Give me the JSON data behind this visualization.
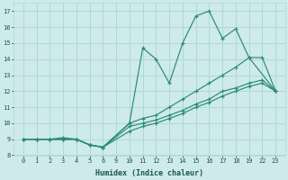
{
  "xlabel": "Humidex (Indice chaleur)",
  "background_color": "#ceeaea",
  "grid_color": "#b0d8d8",
  "line_color": "#2a8a7a",
  "ylim": [
    8,
    17.5
  ],
  "yticks": [
    8,
    9,
    10,
    11,
    12,
    13,
    14,
    15,
    16,
    17
  ],
  "x_positions": [
    0,
    1,
    2,
    3,
    4,
    5,
    6,
    7,
    8,
    9,
    10,
    11,
    12,
    13,
    14,
    15,
    16,
    17,
    18,
    19
  ],
  "x_labels": [
    "0",
    "1",
    "2",
    "3",
    "4",
    "5",
    "6",
    "9",
    "10",
    "11",
    "12",
    "13",
    "14",
    "15",
    "16",
    "17",
    "18",
    "19",
    "22",
    "23"
  ],
  "lines": [
    {
      "x": [
        0,
        1,
        2,
        3,
        4,
        5,
        6,
        8,
        9,
        10,
        11,
        12,
        13,
        14,
        15,
        16,
        17,
        19
      ],
      "y": [
        9,
        9,
        9,
        9,
        9,
        8.65,
        8.5,
        10,
        14.7,
        14,
        12.5,
        15,
        16.7,
        17,
        15.3,
        15.9,
        14.1,
        12
      ]
    },
    {
      "x": [
        0,
        1,
        2,
        3,
        4,
        5,
        6,
        8,
        9,
        10,
        11,
        12,
        13,
        14,
        15,
        16,
        17,
        18,
        19
      ],
      "y": [
        9,
        9,
        9,
        9,
        9,
        8.65,
        8.5,
        10,
        10.3,
        10.5,
        11,
        11.5,
        12,
        12.5,
        13,
        13.5,
        14.1,
        14.1,
        12
      ]
    },
    {
      "x": [
        0,
        1,
        2,
        3,
        4,
        5,
        6,
        8,
        9,
        10,
        11,
        12,
        13,
        14,
        15,
        16,
        17,
        18,
        19
      ],
      "y": [
        9,
        9,
        9,
        9.1,
        9,
        8.65,
        8.5,
        9.8,
        10,
        10.2,
        10.5,
        10.8,
        11.2,
        11.5,
        12,
        12.2,
        12.5,
        12.7,
        12
      ]
    },
    {
      "x": [
        0,
        1,
        2,
        3,
        4,
        5,
        6,
        8,
        9,
        10,
        11,
        12,
        13,
        14,
        15,
        16,
        17,
        18,
        19
      ],
      "y": [
        9,
        9,
        9,
        9,
        9,
        8.65,
        8.5,
        9.5,
        9.8,
        10,
        10.3,
        10.6,
        11,
        11.3,
        11.7,
        12,
        12.3,
        12.5,
        12
      ]
    }
  ]
}
